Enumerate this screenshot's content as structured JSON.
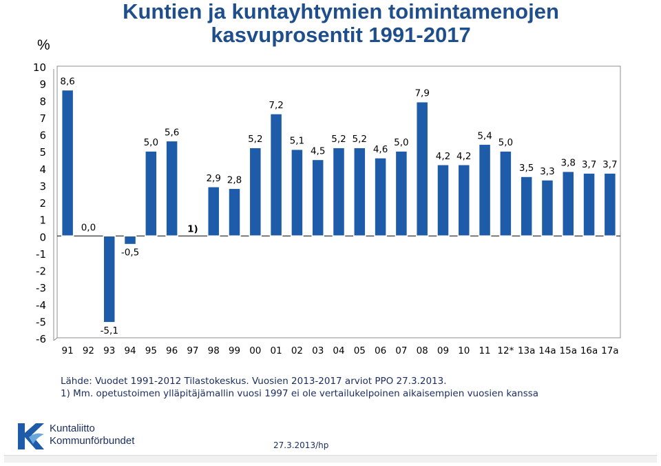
{
  "header": {
    "title_line1": "Kuntien ja kuntayhtymien toimintamenojen",
    "title_line2": "kasvuprosentit 1991-2017",
    "unit": "%"
  },
  "chart_data": {
    "type": "bar",
    "title": "Kuntien ja kuntayhtymien toimintamenojen kasvuprosentit 1991-2017",
    "ylabel": "%",
    "ylim": [
      -6,
      10
    ],
    "yticks": [
      "10",
      "9",
      "8",
      "7",
      "6",
      "5",
      "4",
      "3",
      "2",
      "1",
      "0",
      "-1",
      "-2",
      "-3",
      "-4",
      "-5",
      "-6"
    ],
    "categories": [
      "91",
      "92",
      "93",
      "94",
      "95",
      "96",
      "97",
      "98",
      "99",
      "00",
      "01",
      "02",
      "03",
      "04",
      "05",
      "06",
      "07",
      "08",
      "09",
      "10",
      "11",
      "12*",
      "13a",
      "14a",
      "15a",
      "16a",
      "17a"
    ],
    "values": [
      8.6,
      0.0,
      -5.1,
      -0.5,
      5.0,
      5.6,
      null,
      2.9,
      2.8,
      5.2,
      7.2,
      5.1,
      4.5,
      5.2,
      5.2,
      4.6,
      5.0,
      7.9,
      4.2,
      4.2,
      5.4,
      5.0,
      3.5,
      3.3,
      3.8,
      3.7,
      3.7
    ],
    "value_labels": [
      "8,6",
      "0,0",
      "-5,1",
      "-0,5",
      "5,0",
      "5,6",
      "1)",
      "2,9",
      "2,8",
      "5,2",
      "7,2",
      "5,1",
      "4,5",
      "5,2",
      "5,2",
      "4,6",
      "5,0",
      "7,9",
      "4,2",
      "4,2",
      "5,4",
      "5,0",
      "3,5",
      "3,3",
      "3,8",
      "3,7",
      "3,7"
    ],
    "bar_color": "#1e5ba8",
    "grid": false,
    "legend": "none"
  },
  "footer": {
    "source_line1": "Lähde: Vuodet 1991-2012 Tilastokeskus. Vuosien 2013-2017 arviot PPO 27.3.2013.",
    "source_line2": "1) Mm. opetustoimen ylläpitäjämallin vuosi 1997 ei ole vertailukelpoinen aikaisempien vuosien kanssa",
    "logo_line1": "Kuntaliitto",
    "logo_line2": "Kommunförbundet",
    "date": "27.3.2013/hp"
  }
}
